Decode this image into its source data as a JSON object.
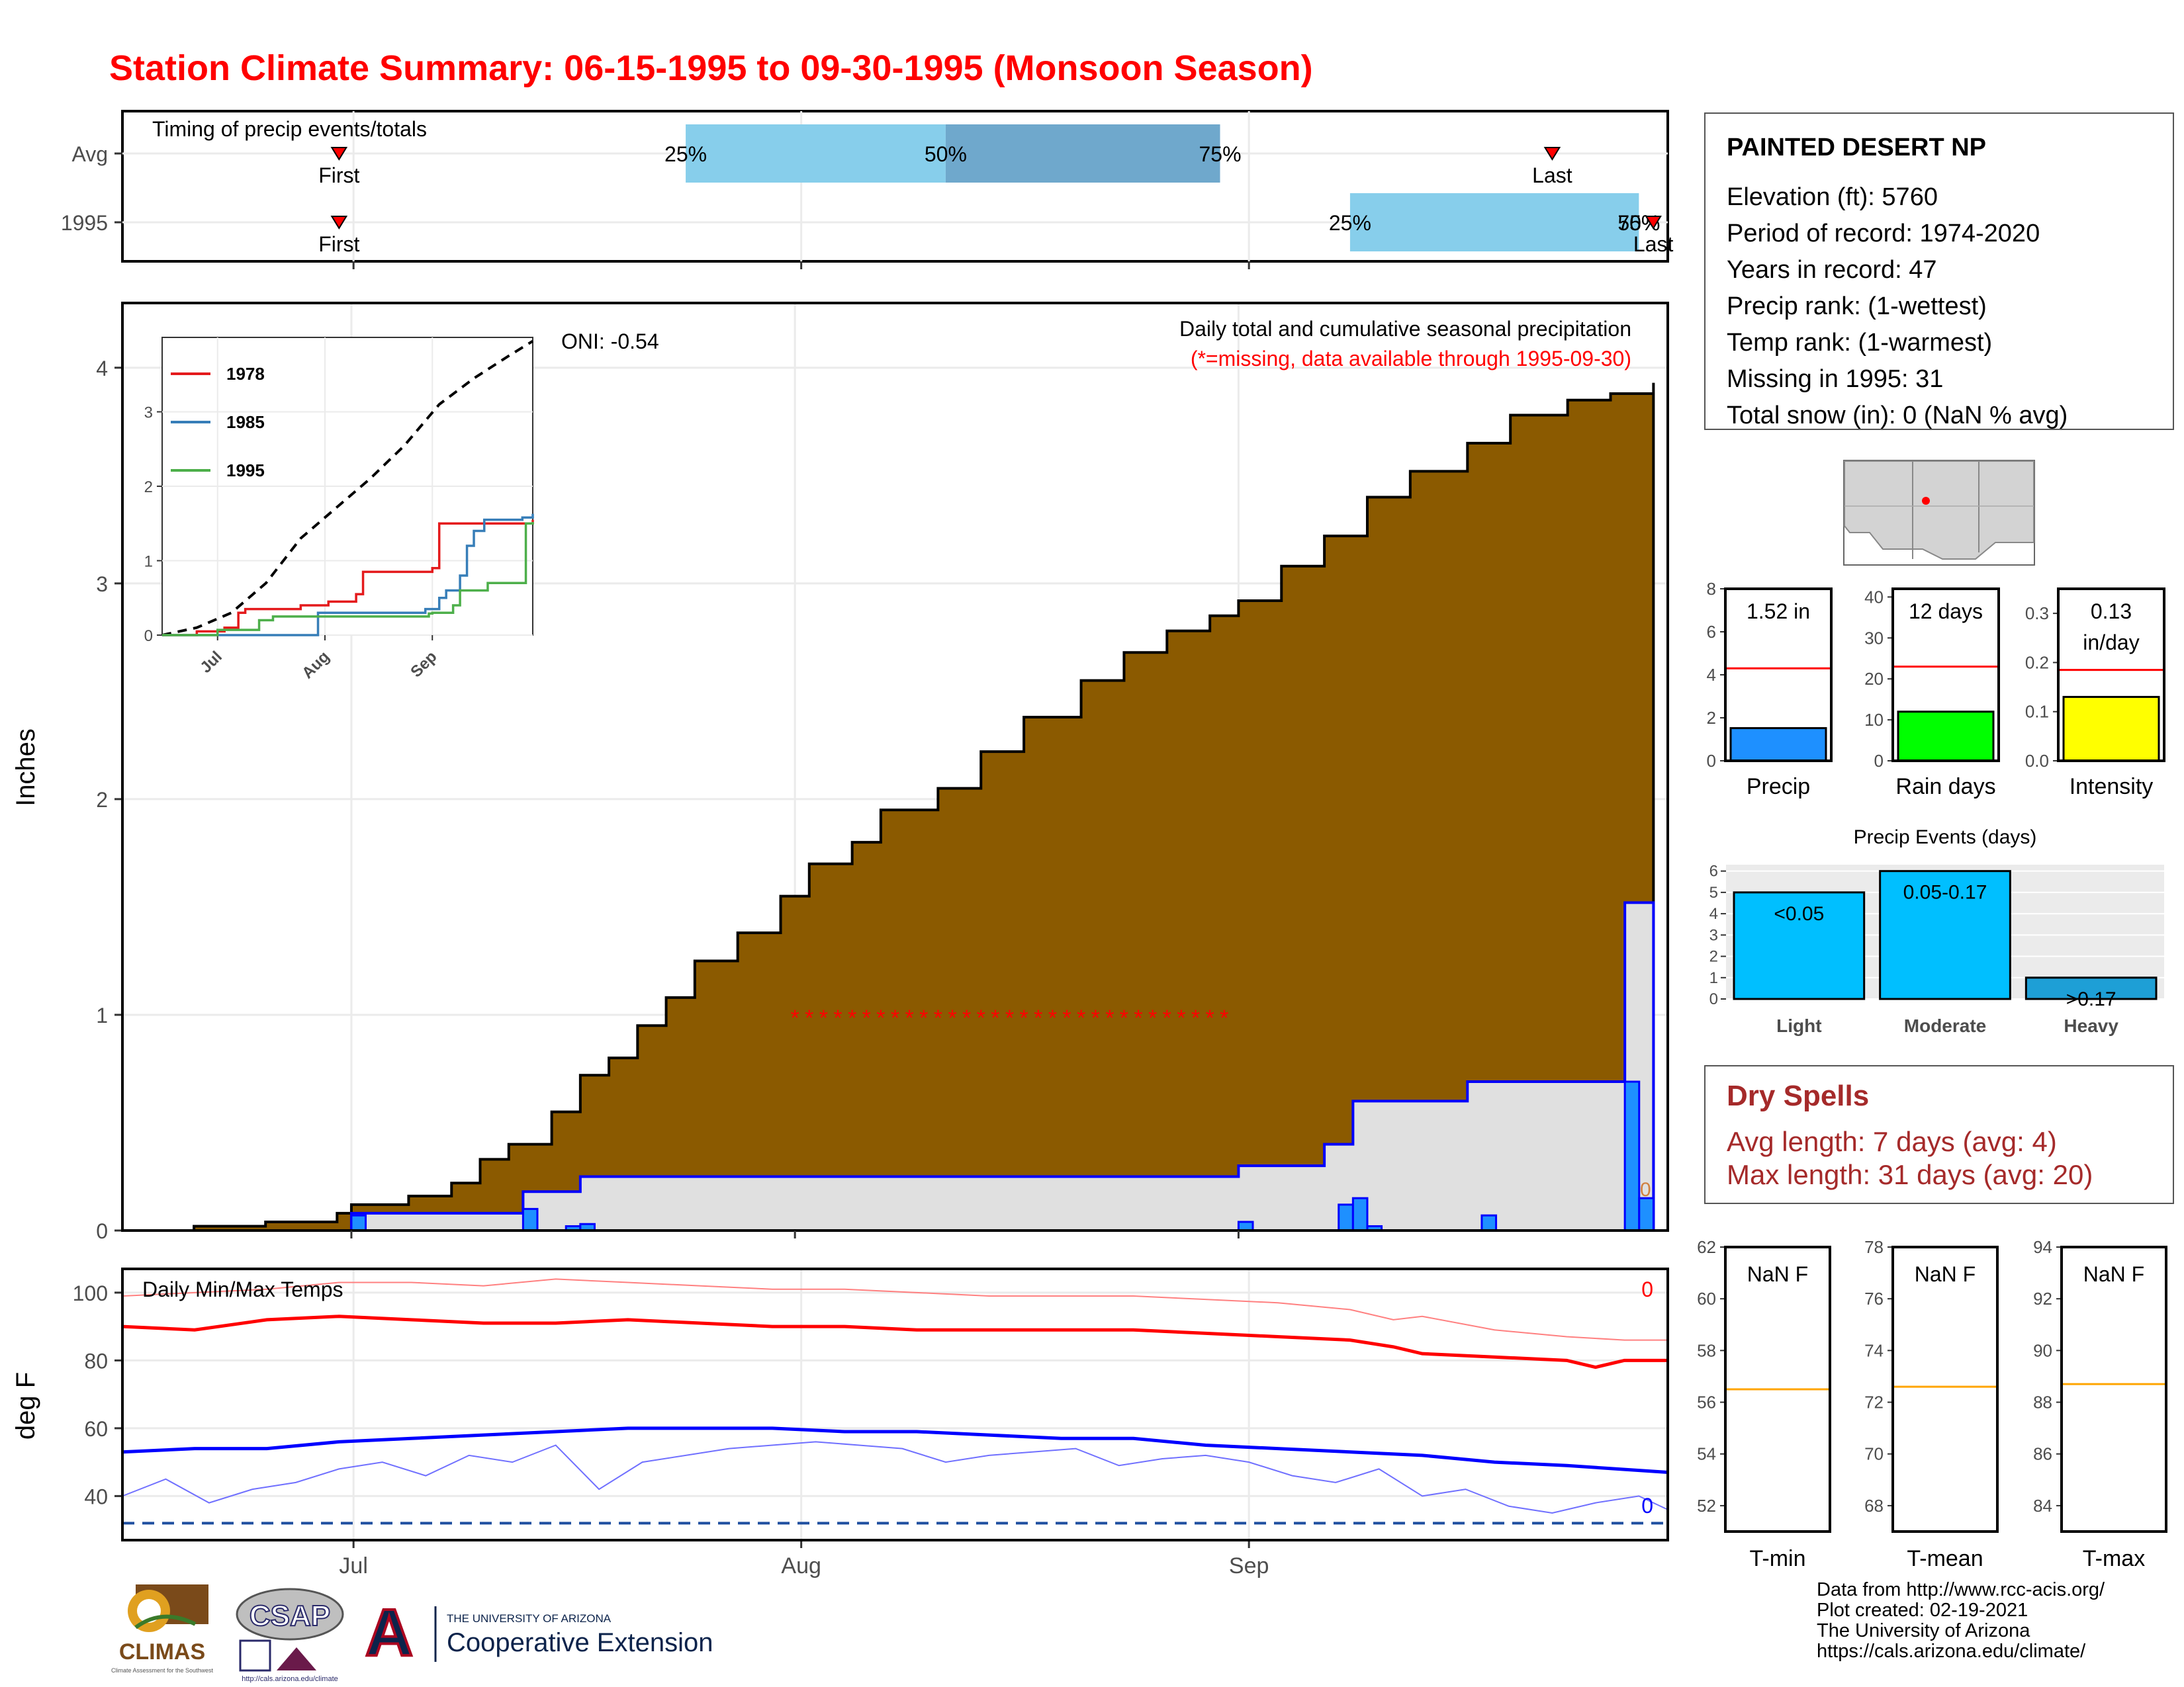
{
  "title": "Station Climate Summary: 06-15-1995 to 09-30-1995 (Monsoon Season)",
  "colors": {
    "title": "#ff0000",
    "cumulative_fill": "#8b5a00",
    "avg_daily_fill": "#e0e0e0",
    "daily_bar": "#1e90ff",
    "line_blue": "#0000ff",
    "line_red": "#ff0000",
    "timing_light": "#87ceeb",
    "timing_dark": "#6fa8cc"
  },
  "station": {
    "name": "PAINTED DESERT NP",
    "lines": [
      "Elevation (ft): 5760",
      "Period of record: 1974-2020",
      "Years in record: 47",
      "Precip rank:  (1-wettest)",
      "Temp rank:  (1-warmest)",
      "Missing in 1995: 31",
      "Total snow (in): 0 (NaN % avg)"
    ]
  },
  "dry_spells": {
    "title": "Dry Spells",
    "avg_length": "Avg length: 7 days (avg: 4)",
    "max_length": "Max length: 31 days (avg: 20)"
  },
  "footer": {
    "lines": [
      "Data from http://www.rcc-acis.org/",
      "Plot created: 02-19-2021",
      "The University of Arizona",
      "https://cals.arizona.edu/climate/"
    ],
    "logos": {
      "climas": "CLIMAS",
      "climas_sub": "Climate Assessment for the Southwest",
      "csap": "CSAP",
      "csap_url": "http://cals.arizona.edu/climate",
      "ua_letter": "A",
      "ua_small": "THE UNIVERSITY OF ARIZONA",
      "ua_ext": "Cooperative Extension"
    }
  },
  "chart_data": [
    {
      "id": "timing",
      "type": "bar",
      "title": "Timing of precip events/totals",
      "categories": [
        "Avg",
        "1995"
      ],
      "x_range_days": [
        0,
        107
      ],
      "bars": [
        {
          "row": "Avg",
          "segments": [
            {
              "from": 39,
              "to": 57,
              "color": "light"
            },
            {
              "from": 57,
              "to": 76,
              "color": "dark"
            }
          ],
          "labels": [
            {
              "day": 39,
              "text": "25%"
            },
            {
              "day": 57,
              "text": "50%"
            },
            {
              "day": 76,
              "text": "75%"
            }
          ],
          "markers": [
            {
              "day": 15,
              "text": "First"
            },
            {
              "day": 99,
              "text": "Last"
            }
          ]
        },
        {
          "row": "1995",
          "segments": [
            {
              "from": 85,
              "to": 105,
              "color": "light"
            }
          ],
          "labels": [
            {
              "day": 85,
              "text": "25%"
            },
            {
              "day": 105,
              "text": "50%"
            },
            {
              "day": 105,
              "text": "75%"
            }
          ],
          "markers": [
            {
              "day": 15,
              "text": "First"
            },
            {
              "day": 106,
              "text": "Last"
            }
          ]
        }
      ]
    },
    {
      "id": "precip",
      "type": "area",
      "ylabel": "Inches",
      "ylim": [
        0,
        4.3
      ],
      "yticks": [
        0,
        1,
        2,
        3,
        4
      ],
      "x_ticks": [
        {
          "day": 16,
          "label": "Jul"
        },
        {
          "day": 47,
          "label": "Aug"
        },
        {
          "day": 78,
          "label": "Sep"
        }
      ],
      "days": 108,
      "annotation_title": "Daily total and cumulative seasonal precipitation",
      "annotation_missing": "(*=missing, data available through 1995-09-30)",
      "oni": "ONI: -0.54",
      "missing_range_days": [
        47,
        77
      ],
      "missing_y": 1.0,
      "last_value_label": "0",
      "avg_cumulative": [
        [
          0,
          0
        ],
        [
          5,
          0.02
        ],
        [
          10,
          0.04
        ],
        [
          15,
          0.08
        ],
        [
          16,
          0.12
        ],
        [
          20,
          0.16
        ],
        [
          23,
          0.22
        ],
        [
          25,
          0.33
        ],
        [
          27,
          0.4
        ],
        [
          30,
          0.55
        ],
        [
          32,
          0.72
        ],
        [
          34,
          0.8
        ],
        [
          36,
          0.95
        ],
        [
          38,
          1.08
        ],
        [
          40,
          1.25
        ],
        [
          43,
          1.38
        ],
        [
          46,
          1.55
        ],
        [
          48,
          1.7
        ],
        [
          51,
          1.8
        ],
        [
          53,
          1.95
        ],
        [
          57,
          2.05
        ],
        [
          60,
          2.22
        ],
        [
          63,
          2.38
        ],
        [
          67,
          2.55
        ],
        [
          70,
          2.68
        ],
        [
          73,
          2.78
        ],
        [
          76,
          2.85
        ],
        [
          78,
          2.92
        ],
        [
          81,
          3.08
        ],
        [
          84,
          3.22
        ],
        [
          87,
          3.4
        ],
        [
          90,
          3.52
        ],
        [
          94,
          3.65
        ],
        [
          97,
          3.78
        ],
        [
          101,
          3.85
        ],
        [
          104,
          3.88
        ],
        [
          107,
          3.93
        ]
      ],
      "avg_daily_cum_1995": [
        [
          0,
          0
        ],
        [
          16,
          0.08
        ],
        [
          28,
          0.18
        ],
        [
          32,
          0.25
        ],
        [
          77,
          0.25
        ],
        [
          78,
          0.3
        ],
        [
          84,
          0.4
        ],
        [
          86,
          0.6
        ],
        [
          94,
          0.69
        ],
        [
          104,
          0.69
        ],
        [
          105,
          1.52
        ],
        [
          107,
          1.52
        ]
      ],
      "daily_bars_1995": [
        {
          "day": 16,
          "value": 0.07
        },
        {
          "day": 28,
          "value": 0.1
        },
        {
          "day": 31,
          "value": 0.02
        },
        {
          "day": 32,
          "value": 0.03
        },
        {
          "day": 78,
          "value": 0.04
        },
        {
          "day": 85,
          "value": 0.12
        },
        {
          "day": 86,
          "value": 0.15
        },
        {
          "day": 87,
          "value": 0.02
        },
        {
          "day": 95,
          "value": 0.07
        },
        {
          "day": 105,
          "value": 0.69
        },
        {
          "day": 106,
          "value": 0.15
        }
      ]
    },
    {
      "id": "inset",
      "type": "line",
      "ylim": [
        0,
        4
      ],
      "yticks": [
        0,
        1,
        2,
        3
      ],
      "x_ticks": [
        {
          "day": 16,
          "label": "Jul"
        },
        {
          "day": 47,
          "label": "Aug"
        },
        {
          "day": 78,
          "label": "Sep"
        }
      ],
      "series": [
        {
          "name": "1978",
          "color": "#e41a1c",
          "points": [
            [
              0,
              0
            ],
            [
              10,
              0
            ],
            [
              10,
              0.05
            ],
            [
              18,
              0.1
            ],
            [
              22,
              0.3
            ],
            [
              24,
              0.35
            ],
            [
              40,
              0.4
            ],
            [
              48,
              0.45
            ],
            [
              56,
              0.55
            ],
            [
              58,
              0.85
            ],
            [
              78,
              0.9
            ],
            [
              80,
              1.5
            ],
            [
              90,
              1.5
            ],
            [
              95,
              1.5
            ],
            [
              100,
              1.5
            ],
            [
              107,
              1.55
            ]
          ]
        },
        {
          "name": "1985",
          "color": "#377eb8",
          "points": [
            [
              0,
              0
            ],
            [
              45,
              0
            ],
            [
              45,
              0.3
            ],
            [
              70,
              0.3
            ],
            [
              76,
              0.35
            ],
            [
              80,
              0.5
            ],
            [
              82,
              0.6
            ],
            [
              86,
              0.8
            ],
            [
              88,
              1.2
            ],
            [
              90,
              1.4
            ],
            [
              93,
              1.55
            ],
            [
              104,
              1.58
            ],
            [
              107,
              1.63
            ]
          ]
        },
        {
          "name": "1995",
          "color": "#4daf4a",
          "points": [
            [
              0,
              0
            ],
            [
              16,
              0.07
            ],
            [
              28,
              0.2
            ],
            [
              32,
              0.25
            ],
            [
              77,
              0.29
            ],
            [
              78,
              0.3
            ],
            [
              84,
              0.4
            ],
            [
              86,
              0.6
            ],
            [
              94,
              0.7
            ],
            [
              104,
              0.7
            ],
            [
              105,
              1.5
            ],
            [
              107,
              1.52
            ]
          ]
        }
      ],
      "avg_dashed": [
        [
          0,
          0
        ],
        [
          10,
          0.1
        ],
        [
          20,
          0.3
        ],
        [
          30,
          0.7
        ],
        [
          40,
          1.3
        ],
        [
          50,
          1.7
        ],
        [
          60,
          2.1
        ],
        [
          70,
          2.55
        ],
        [
          80,
          3.1
        ],
        [
          90,
          3.45
        ],
        [
          100,
          3.75
        ],
        [
          107,
          3.95
        ]
      ]
    },
    {
      "id": "temps",
      "type": "line",
      "title": "Daily Min/Max Temps",
      "ylabel": "deg F",
      "ylim": [
        27,
        107
      ],
      "yticks": [
        40,
        60,
        80,
        100
      ],
      "x_ticks": [
        {
          "day": 16,
          "label": "Jul"
        },
        {
          "day": 47,
          "label": "Aug"
        },
        {
          "day": 78,
          "label": "Sep"
        }
      ],
      "freeze_line": 32,
      "max_missing_label": "0",
      "min_missing_label": "0",
      "avg_max": [
        [
          0,
          90
        ],
        [
          5,
          89
        ],
        [
          10,
          92
        ],
        [
          15,
          93
        ],
        [
          20,
          92
        ],
        [
          25,
          91
        ],
        [
          30,
          91
        ],
        [
          35,
          92
        ],
        [
          40,
          91
        ],
        [
          45,
          90
        ],
        [
          50,
          90
        ],
        [
          55,
          89
        ],
        [
          60,
          89
        ],
        [
          65,
          89
        ],
        [
          70,
          89
        ],
        [
          75,
          88
        ],
        [
          80,
          87
        ],
        [
          85,
          86
        ],
        [
          88,
          84
        ],
        [
          90,
          82
        ],
        [
          95,
          81
        ],
        [
          100,
          80
        ],
        [
          102,
          78
        ],
        [
          104,
          80
        ],
        [
          107,
          80
        ]
      ],
      "avg_min": [
        [
          0,
          53
        ],
        [
          5,
          54
        ],
        [
          10,
          54
        ],
        [
          15,
          56
        ],
        [
          20,
          57
        ],
        [
          25,
          58
        ],
        [
          30,
          59
        ],
        [
          35,
          60
        ],
        [
          40,
          60
        ],
        [
          45,
          60
        ],
        [
          50,
          59
        ],
        [
          55,
          59
        ],
        [
          60,
          58
        ],
        [
          65,
          57
        ],
        [
          70,
          57
        ],
        [
          75,
          55
        ],
        [
          80,
          54
        ],
        [
          85,
          53
        ],
        [
          90,
          52
        ],
        [
          95,
          50
        ],
        [
          100,
          49
        ],
        [
          107,
          47
        ]
      ],
      "obs_max": [
        [
          0,
          99
        ],
        [
          5,
          100
        ],
        [
          10,
          101
        ],
        [
          15,
          103
        ],
        [
          20,
          103
        ],
        [
          25,
          102
        ],
        [
          30,
          104
        ],
        [
          35,
          103
        ],
        [
          40,
          102
        ],
        [
          45,
          101
        ],
        [
          50,
          101
        ],
        [
          55,
          100
        ],
        [
          60,
          99
        ],
        [
          65,
          99
        ],
        [
          70,
          99
        ],
        [
          75,
          98
        ],
        [
          80,
          97
        ],
        [
          85,
          95
        ],
        [
          88,
          92
        ],
        [
          90,
          93
        ],
        [
          95,
          89
        ],
        [
          100,
          87
        ],
        [
          104,
          86
        ],
        [
          107,
          86
        ]
      ],
      "obs_min": [
        [
          0,
          40
        ],
        [
          3,
          45
        ],
        [
          6,
          38
        ],
        [
          9,
          42
        ],
        [
          12,
          44
        ],
        [
          15,
          48
        ],
        [
          18,
          50
        ],
        [
          21,
          46
        ],
        [
          24,
          52
        ],
        [
          27,
          50
        ],
        [
          30,
          55
        ],
        [
          33,
          42
        ],
        [
          36,
          50
        ],
        [
          39,
          52
        ],
        [
          42,
          54
        ],
        [
          45,
          55
        ],
        [
          48,
          56
        ],
        [
          51,
          55
        ],
        [
          54,
          54
        ],
        [
          57,
          50
        ],
        [
          60,
          52
        ],
        [
          63,
          53
        ],
        [
          66,
          54
        ],
        [
          69,
          49
        ],
        [
          72,
          51
        ],
        [
          75,
          52
        ],
        [
          78,
          50
        ],
        [
          81,
          46
        ],
        [
          84,
          44
        ],
        [
          87,
          48
        ],
        [
          90,
          40
        ],
        [
          93,
          42
        ],
        [
          96,
          37
        ],
        [
          99,
          35
        ],
        [
          102,
          38
        ],
        [
          105,
          40
        ],
        [
          107,
          36
        ]
      ]
    },
    {
      "id": "precip_stats",
      "type": "bar",
      "panels": [
        {
          "name": "precip-stat",
          "label": "Precip",
          "value_label": "1.52 in",
          "value": 1.52,
          "avg": 4.3,
          "ylim": [
            0,
            8
          ],
          "yticks": [
            0,
            2,
            4,
            6,
            8
          ],
          "color": "#1e90ff"
        },
        {
          "name": "raindays-stat",
          "label": "Rain days",
          "value_label": "12 days",
          "value": 12,
          "avg": 23,
          "ylim": [
            0,
            42
          ],
          "yticks": [
            0,
            10,
            20,
            30,
            40
          ],
          "color": "#00ff00"
        },
        {
          "name": "intensity-stat",
          "label": "Intensity",
          "value_label": "0.13",
          "value_label2": "in/day",
          "value": 0.13,
          "avg": 0.185,
          "ylim": [
            0,
            0.35
          ],
          "yticks": [
            0.0,
            0.1,
            0.2,
            0.3
          ],
          "color": "#ffff00"
        }
      ]
    },
    {
      "id": "precip_events",
      "type": "bar",
      "title": "Precip Events (days)",
      "categories": [
        "Light",
        "Moderate",
        "Heavy"
      ],
      "values": [
        5,
        6,
        1
      ],
      "bar_labels": [
        "<0.05",
        "0.05-0.17",
        ">0.17"
      ],
      "ylim": [
        0,
        6.3
      ],
      "yticks": [
        0,
        1,
        2,
        3,
        4,
        5,
        6
      ],
      "colors": [
        "#00bfff",
        "#00bfff",
        "#1e9fd6"
      ]
    },
    {
      "id": "temp_stats",
      "type": "bar",
      "panels": [
        {
          "name": "tmin-stat",
          "label": "T-min",
          "value_label": "NaN F",
          "avg": 56.5,
          "ylim": [
            51,
            62
          ],
          "yticks": [
            52,
            54,
            56,
            58,
            60,
            62
          ]
        },
        {
          "name": "tmean-stat",
          "label": "T-mean",
          "value_label": "NaN F",
          "avg": 72.6,
          "ylim": [
            67,
            78
          ],
          "yticks": [
            68,
            70,
            72,
            74,
            76,
            78
          ]
        },
        {
          "name": "tmax-stat",
          "label": "T-max",
          "value_label": "NaN F",
          "avg": 88.7,
          "ylim": [
            83,
            94
          ],
          "yticks": [
            84,
            86,
            88,
            90,
            92,
            94
          ]
        }
      ]
    }
  ]
}
